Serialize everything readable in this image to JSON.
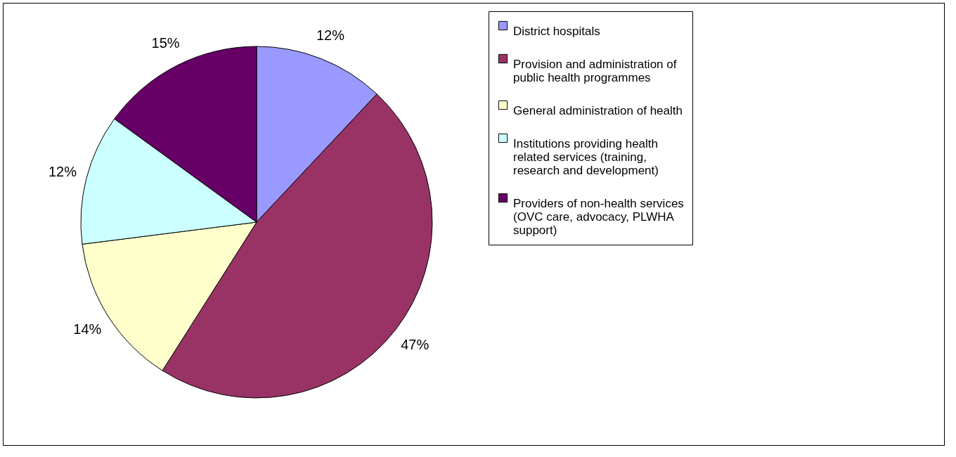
{
  "chart_data": {
    "type": "pie",
    "categories": [
      "District hospitals",
      "Provision and administration of public health programmes",
      "General administration of health",
      "Institutions providing health related services (training, research and development)",
      "Providers of non-health services (OVC care, advocacy, PLWHA support)"
    ],
    "values": [
      12,
      47,
      14,
      12,
      15
    ],
    "value_labels": [
      "12%",
      "47%",
      "14%",
      "12%",
      "15%"
    ],
    "colors": [
      "#9999ff",
      "#993366",
      "#ffffcc",
      "#ccffff",
      "#660066"
    ],
    "legend": "right"
  }
}
